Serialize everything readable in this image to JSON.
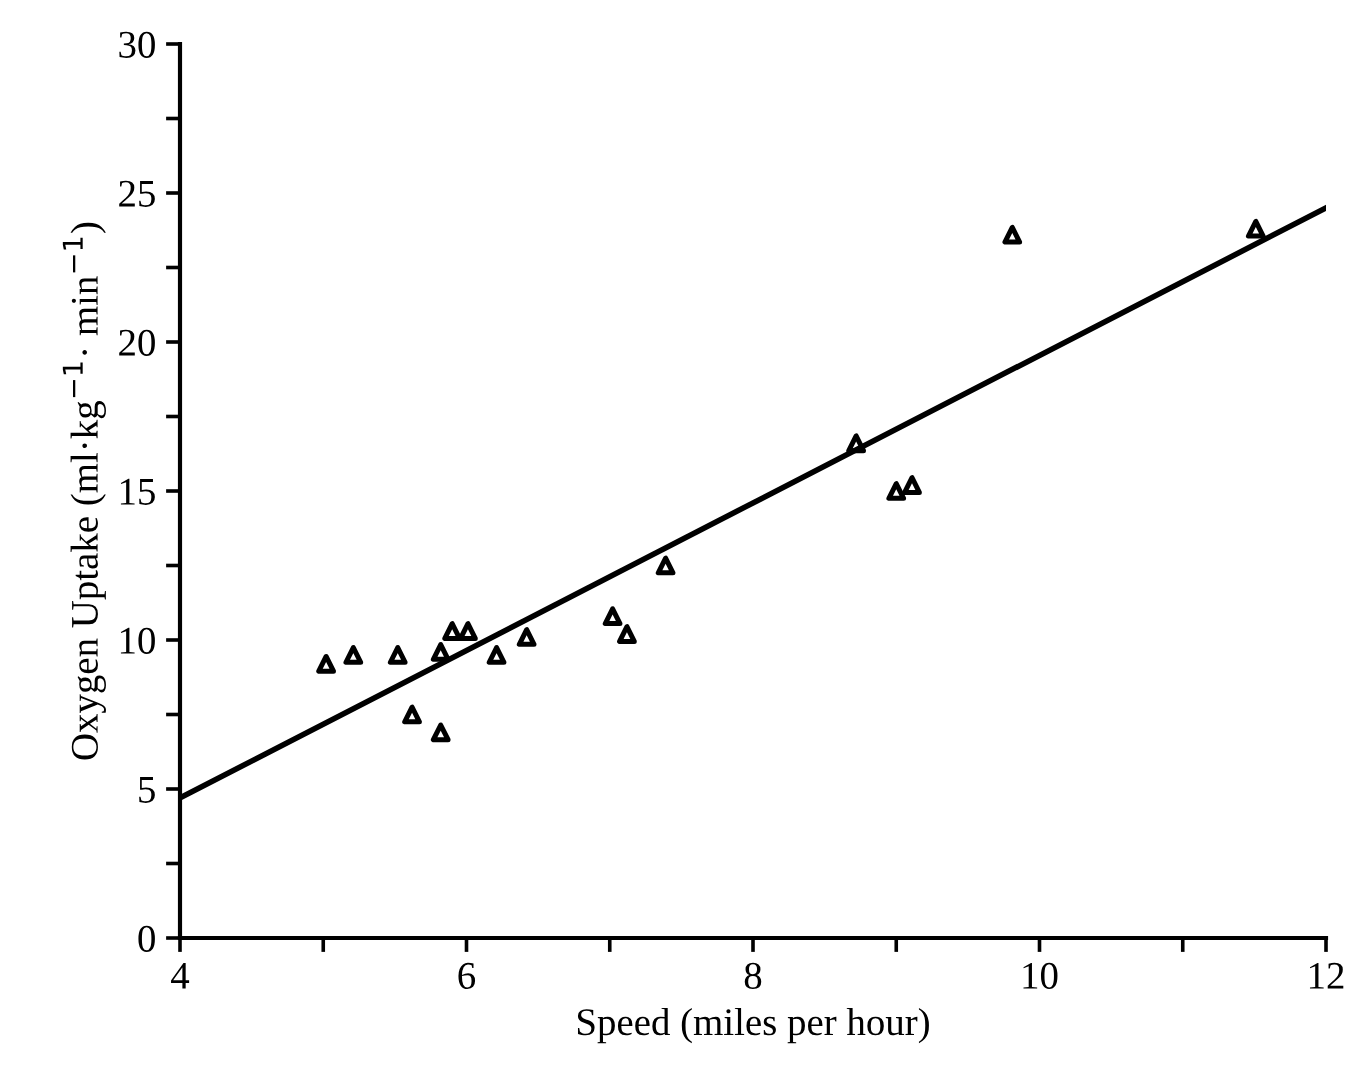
{
  "chart_data": {
    "type": "scatter",
    "xlabel": "Speed (miles per hour)",
    "ylabel": "Oxygen Uptake (ml·kg$^{−1}$· min$^{−1}$)",
    "xlim": [
      4,
      12
    ],
    "ylim": [
      0,
      30
    ],
    "xticks": [
      4,
      {
        "value": 5,
        "label": null
      },
      6,
      {
        "value": 7,
        "label": null
      },
      8,
      {
        "value": 9,
        "label": null
      },
      10,
      {
        "value": 11,
        "label": null
      },
      12
    ],
    "yticks": [
      0,
      {
        "value": 2.5,
        "label": null
      },
      5,
      {
        "value": 7.5,
        "label": null
      },
      10,
      {
        "value": 12.5,
        "label": null
      },
      15,
      {
        "value": 17.5,
        "label": null
      },
      20,
      {
        "value": 22.5,
        "label": null
      },
      25,
      {
        "value": 27.5,
        "label": null
      },
      30
    ],
    "grid": false,
    "legend": false,
    "marker": "triangle",
    "series": [
      {
        "color": "#000000",
        "x": [
          5.02,
          5.21,
          5.52,
          5.62,
          5.82,
          5.82,
          5.9,
          6.01,
          6.21,
          6.42,
          7.02,
          7.12,
          7.39,
          8.72,
          9.0,
          9.11,
          9.81,
          11.51
        ],
        "values": [
          9.2,
          9.5,
          9.5,
          7.5,
          9.6,
          6.9,
          10.3,
          10.3,
          9.5,
          10.1,
          10.8,
          10.2,
          12.5,
          16.6,
          15.0,
          15.2,
          23.6,
          23.8
        ]
      },
      {
        "type": "line",
        "color": "#000000",
        "x": [
          4,
          12
        ],
        "values": [
          4.7,
          24.5
        ],
        "marker": "none",
        "line_style": "solid"
      }
    ]
  }
}
